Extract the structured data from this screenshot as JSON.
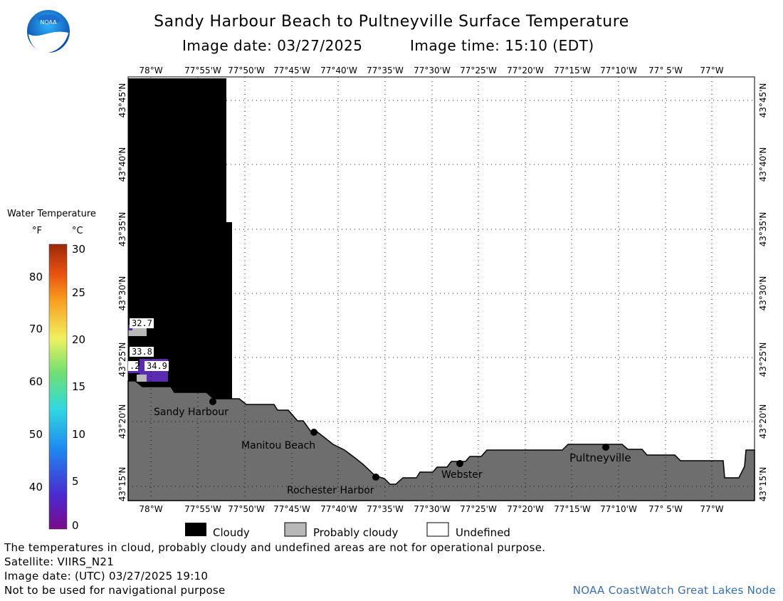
{
  "title": "Sandy Harbour Beach to Pultneyville Surface Temperature",
  "subtitle_date": "Image date: 03/27/2025",
  "subtitle_time": "Image time: 15:10 (EDT)",
  "logo_text": "NOAA",
  "lon_labels": [
    "78°W",
    "77°55'W",
    "77°50'W",
    "77°45'W",
    "77°40'W",
    "77°35'W",
    "77°30'W",
    "77°25'W",
    "77°20'W",
    "77°15'W",
    "77°10'W",
    "77° 5'W",
    "77°W"
  ],
  "lat_labels": [
    "43°45'N",
    "43°40'N",
    "43°35'N",
    "43°30'N",
    "43°25'N",
    "43°20'N",
    "43°15'N"
  ],
  "places": [
    {
      "name": "Sandy Harbour"
    },
    {
      "name": "Manitou Beach"
    },
    {
      "name": "Rochester Harbor"
    },
    {
      "name": "Webster"
    },
    {
      "name": "Pultneyville"
    }
  ],
  "temp_labels": [
    "32.7",
    "33.8",
    "34.9",
    ".2"
  ],
  "colorbar": {
    "title": "Water Temperature",
    "unit_f": "°F",
    "unit_c": "°C",
    "f_ticks": [
      "80",
      "70",
      "60",
      "50",
      "40"
    ],
    "c_ticks": [
      "30",
      "25",
      "20",
      "15",
      "10",
      "5",
      "0"
    ]
  },
  "legend": {
    "cloudy": "Cloudy",
    "probably_cloudy": "Probably cloudy",
    "undefined": "Undefined"
  },
  "notes": {
    "disclaimer": "The temperatures in cloud, probably cloudy and undefined areas are not for operational purpose.",
    "satellite": "Satellite: VIIRS_N21",
    "utc_date": "Image date: (UTC) 03/27/2025  19:10",
    "nav": "Not to be used for navigational purpose",
    "credit": "NOAA CoastWatch Great Lakes Node"
  },
  "colors": {
    "land": "#6e6e6e",
    "cloud": "#000000",
    "probably_cloudy": "#b8b8b8",
    "cold_water": "#5a2db0",
    "grid": "#000000"
  }
}
